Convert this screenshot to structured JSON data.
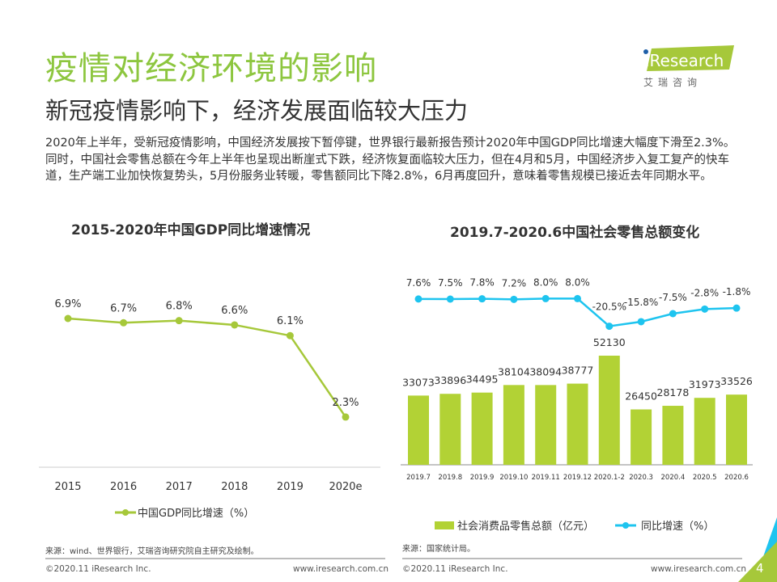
{
  "header": {
    "title": "疫情对经济环境的影响",
    "subtitle": "新冠疫情影响下，经济发展面临较大压力",
    "logo_text": "iResearch",
    "logo_cn": "艾 瑞 咨 询"
  },
  "body_text": "2020年上半年，受新冠疫情影响，中国经济发展按下暂停键，世界银行最新报告预计2020年中国GDP同比增速大幅度下滑至2.3%。同时，中国社会零售总额在今年上半年也呈现出断崖式下跌，经济恢复面临较大压力，但在4月和5月，中国经济步入复工复产的快车道，生产端工业加快恢复势头，5月份服务业转暖，零售额同比下降2.8%，6月再度回升，意味着零售规模已接近去年同期水平。",
  "chart_data": [
    {
      "type": "line",
      "title": "2015-2020年中国GDP同比增速情况",
      "categories": [
        "2015",
        "2016",
        "2017",
        "2018",
        "2019",
        "2020e"
      ],
      "series": [
        {
          "name": "中国GDP同比增速（%）",
          "values": [
            6.9,
            6.7,
            6.8,
            6.6,
            6.1,
            2.3
          ],
          "labels": [
            "6.9%",
            "6.7%",
            "6.8%",
            "6.6%",
            "6.1%",
            "2.3%"
          ],
          "color": "#a6c83a"
        }
      ],
      "legend": "bottom"
    },
    {
      "type": "bar",
      "title": "2019.7-2020.6中国社会零售总额变化",
      "categories": [
        "2019.7",
        "2019.8",
        "2019.9",
        "2019.10",
        "2019.11",
        "2019.12",
        "2020.1-2",
        "2020.3",
        "2020.4",
        "2020.5",
        "2020.6"
      ],
      "series": [
        {
          "name": "社会消费品零售总额（亿元）",
          "type": "bar",
          "values": [
            33073,
            33896,
            34495,
            38104,
            38094,
            38777,
            52130,
            26450,
            28178,
            31973,
            33526
          ],
          "color": "#b2d235"
        },
        {
          "name": "同比增速（%）",
          "type": "line",
          "values": [
            7.6,
            7.5,
            7.8,
            7.2,
            8.0,
            8.0,
            -20.5,
            -15.8,
            -7.5,
            -2.8,
            -1.8
          ],
          "labels": [
            "7.6%",
            "7.5%",
            "7.8%",
            "7.2%",
            "8.0%",
            "8.0%",
            "-20.5%",
            "-15.8%",
            "-7.5%",
            "-2.8%",
            "-1.8%"
          ],
          "color": "#1ec4ef"
        }
      ],
      "legend": "bottom"
    }
  ],
  "footer": {
    "source_left": "来源：wind、世界银行，艾瑞咨询研究院自主研究及绘制。",
    "source_right": "来源：国家统计局。",
    "copyright": "©2020.11 iResearch Inc.",
    "url": "www.iresearch.com.cn",
    "page": "4"
  }
}
